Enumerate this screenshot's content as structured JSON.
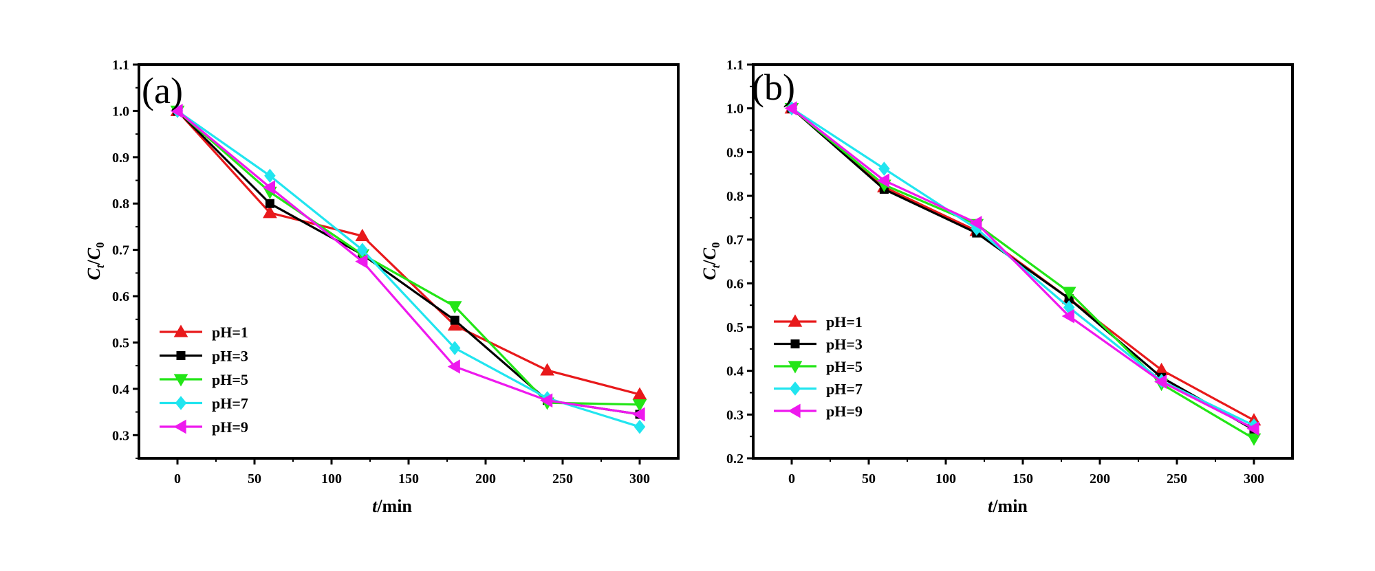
{
  "colors": {
    "pH=1": "#e8191b",
    "pH=3": "#000000",
    "pH=5": "#22e516",
    "pH=7": "#21e5ef",
    "pH=9": "#ee19ee"
  },
  "chart_data": [
    {
      "type": "line",
      "panel_label": "(a)",
      "xlabel_var": "t",
      "xlabel_unit": "/min",
      "ylabel_main": "C",
      "ylabel_sub_t": "t",
      "ylabel_slash": "/",
      "ylabel_sub_0": "0",
      "xlim": [
        -25,
        325
      ],
      "ylim": [
        0.25,
        1.1
      ],
      "x_ticks": [
        0,
        50,
        100,
        150,
        200,
        250,
        300
      ],
      "x_tick_labels": [
        "0",
        "50",
        "100",
        "150",
        "200",
        "250",
        "300"
      ],
      "y_ticks": [
        0.3,
        0.4,
        0.5,
        0.6,
        0.7,
        0.8,
        0.9,
        1.0,
        1.1
      ],
      "y_tick_labels": [
        "0.3",
        "0.4",
        "0.5",
        "0.6",
        "0.7",
        "0.8",
        "0.9",
        "1.0",
        "1.1"
      ],
      "legend_position": "bottom-left",
      "x": [
        0,
        60,
        120,
        180,
        240,
        300
      ],
      "series": [
        {
          "name": "pH=1",
          "marker": "triangle-up",
          "values": [
            1.0,
            0.78,
            0.73,
            0.537,
            0.44,
            0.388
          ]
        },
        {
          "name": "pH=3",
          "marker": "square",
          "values": [
            1.0,
            0.8,
            0.69,
            0.548,
            0.375,
            0.345
          ]
        },
        {
          "name": "pH=5",
          "marker": "triangle-down",
          "values": [
            1.0,
            0.825,
            0.69,
            0.578,
            0.37,
            0.366
          ]
        },
        {
          "name": "pH=7",
          "marker": "diamond",
          "values": [
            1.0,
            0.86,
            0.7,
            0.488,
            0.38,
            0.318
          ]
        },
        {
          "name": "pH=9",
          "marker": "triangle-left",
          "values": [
            1.0,
            0.835,
            0.675,
            0.448,
            0.375,
            0.345
          ]
        }
      ]
    },
    {
      "type": "line",
      "panel_label": "(b)",
      "xlabel_var": "t",
      "xlabel_unit": "/min",
      "ylabel_main": "C",
      "ylabel_sub_t": "t",
      "ylabel_slash": "/",
      "ylabel_sub_0": "0",
      "xlim": [
        -25,
        325
      ],
      "ylim": [
        0.2,
        1.1
      ],
      "x_ticks": [
        0,
        50,
        100,
        150,
        200,
        250,
        300
      ],
      "x_tick_labels": [
        "0",
        "50",
        "100",
        "150",
        "200",
        "250",
        "300"
      ],
      "y_ticks": [
        0.2,
        0.3,
        0.4,
        0.5,
        0.6,
        0.7,
        0.8,
        0.9,
        1.0,
        1.1
      ],
      "y_tick_labels": [
        "0.2",
        "0.3",
        "0.4",
        "0.5",
        "0.6",
        "0.7",
        "0.8",
        "0.9",
        "1.0",
        "1.1"
      ],
      "legend_position": "bottom-left",
      "x": [
        0,
        60,
        120,
        180,
        240,
        300
      ],
      "series": [
        {
          "name": "pH=1",
          "marker": "triangle-up",
          "values": [
            1.0,
            0.82,
            0.72,
            0.565,
            0.402,
            0.287
          ]
        },
        {
          "name": "pH=3",
          "marker": "square",
          "values": [
            1.0,
            0.815,
            0.715,
            0.565,
            0.385,
            0.265
          ]
        },
        {
          "name": "pH=5",
          "marker": "triangle-down",
          "values": [
            1.0,
            0.825,
            0.735,
            0.58,
            0.37,
            0.245
          ]
        },
        {
          "name": "pH=7",
          "marker": "diamond",
          "values": [
            1.0,
            0.862,
            0.725,
            0.545,
            0.377,
            0.275
          ]
        },
        {
          "name": "pH=9",
          "marker": "triangle-left",
          "values": [
            1.0,
            0.835,
            0.738,
            0.525,
            0.375,
            0.268
          ]
        }
      ]
    }
  ]
}
